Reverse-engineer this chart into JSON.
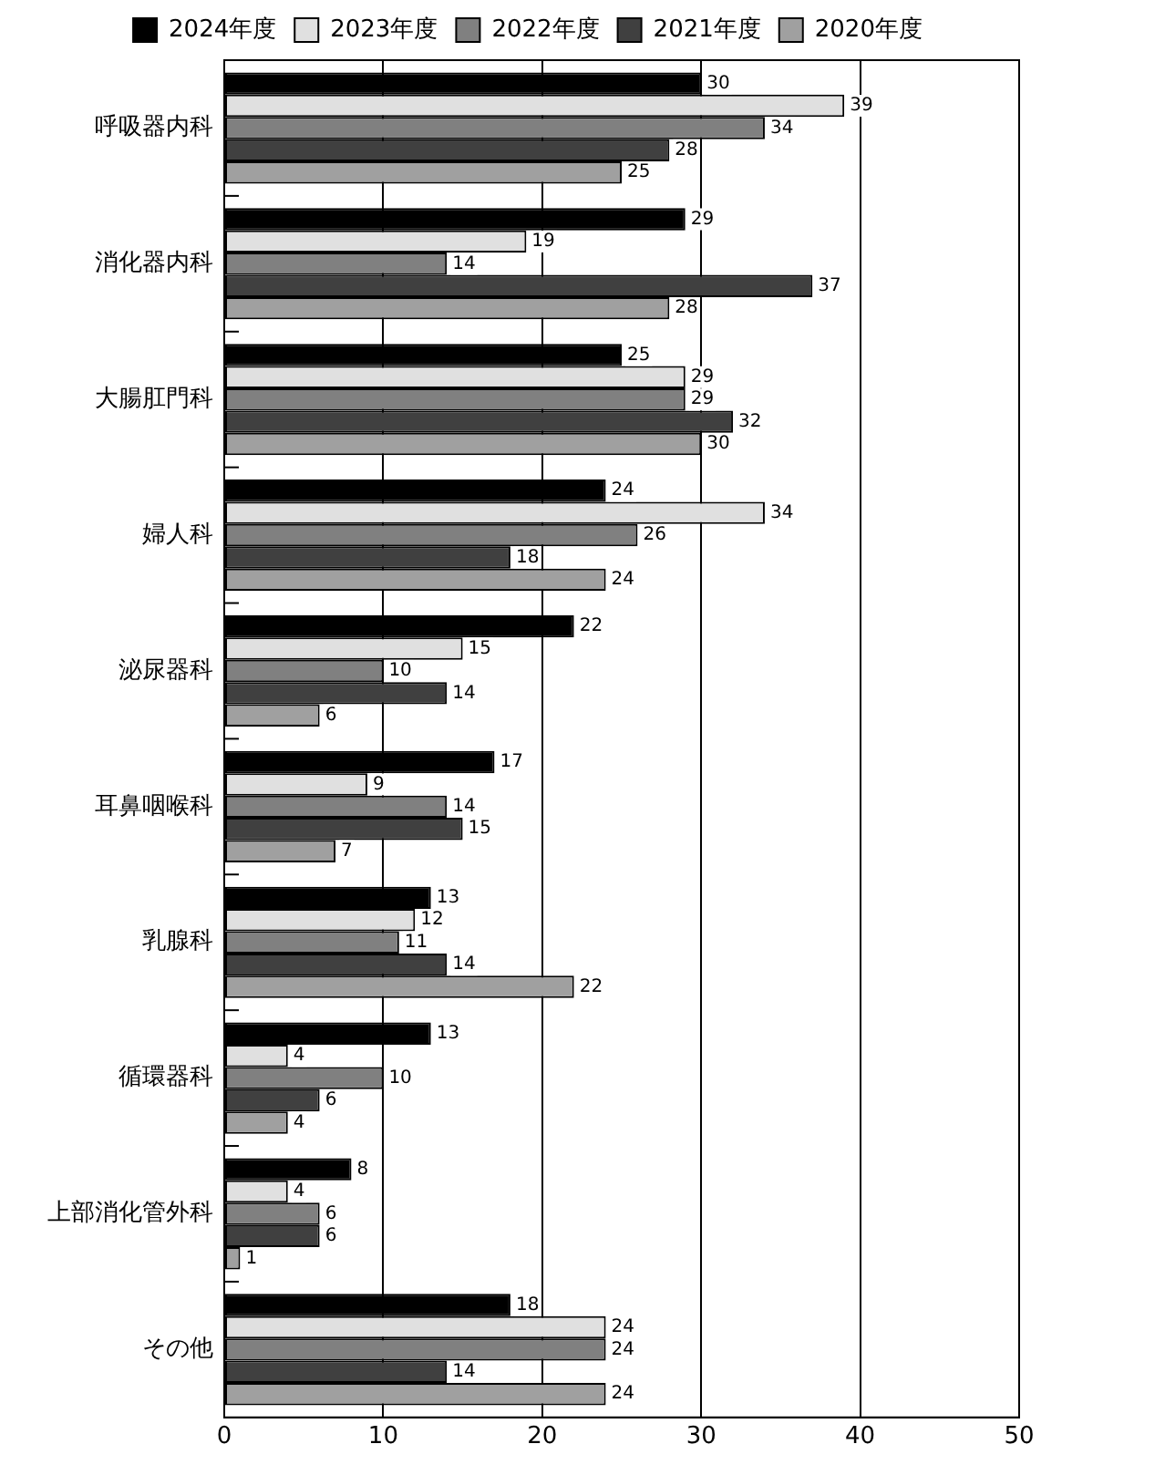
{
  "chart_data": {
    "type": "bar",
    "orientation": "horizontal",
    "categories": [
      "呼吸器内科",
      "消化器内科",
      "大腸肛門科",
      "婦人科",
      "泌尿器科",
      "耳鼻咽喉科",
      "乳腺科",
      "循環器科",
      "上部消化管外科",
      "その他"
    ],
    "series": [
      {
        "name": "2024年度",
        "color": "#000000",
        "values": [
          30,
          29,
          25,
          24,
          22,
          17,
          13,
          13,
          8,
          18
        ]
      },
      {
        "name": "2023年度",
        "color": "#e0e0e0",
        "values": [
          39,
          19,
          29,
          34,
          15,
          9,
          12,
          4,
          4,
          24
        ]
      },
      {
        "name": "2022年度",
        "color": "#808080",
        "values": [
          34,
          14,
          29,
          26,
          10,
          14,
          11,
          10,
          6,
          24
        ]
      },
      {
        "name": "2021年度",
        "color": "#404040",
        "values": [
          28,
          37,
          32,
          18,
          14,
          15,
          14,
          6,
          6,
          14
        ]
      },
      {
        "name": "2020年度",
        "color": "#a0a0a0",
        "values": [
          25,
          28,
          30,
          24,
          6,
          7,
          22,
          4,
          1,
          24
        ]
      }
    ],
    "xlim": [
      0,
      50
    ],
    "xticks": [
      0,
      10,
      20,
      30,
      40,
      50
    ],
    "grid": "x",
    "legend": "top",
    "data_labels": true
  }
}
